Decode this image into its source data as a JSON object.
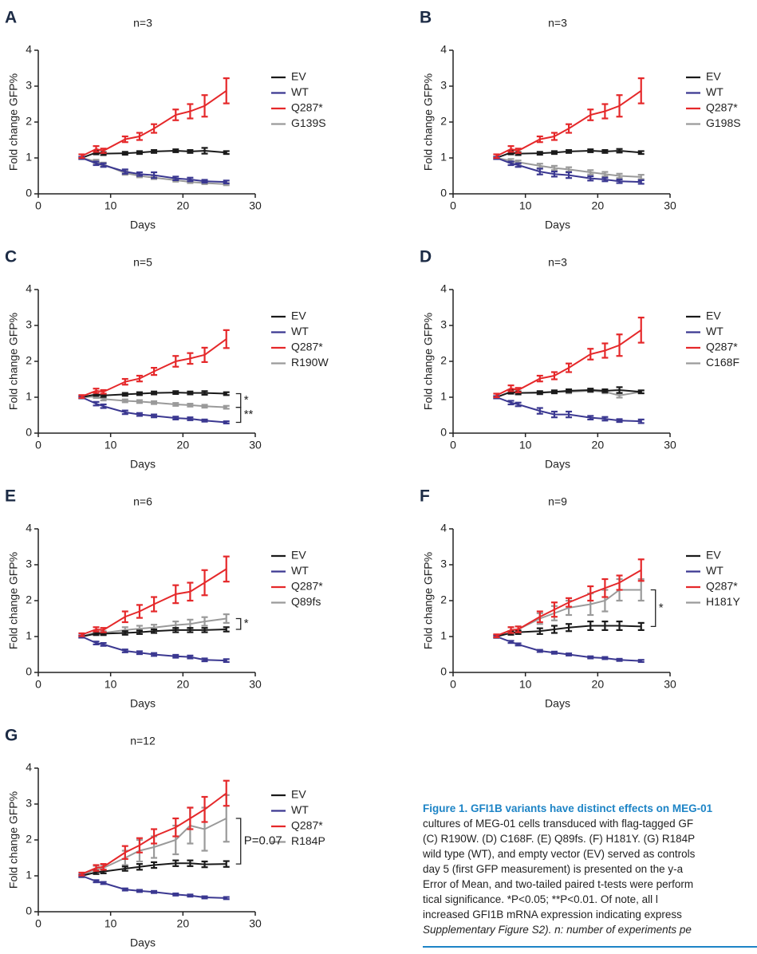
{
  "chart_data": [
    {
      "type": "line",
      "panel": "A",
      "title": "n=3",
      "xlabel": "Days",
      "ylabel": "Fold change GFP%",
      "x": [
        6,
        8,
        9,
        12,
        14,
        16,
        19,
        21,
        23,
        26
      ],
      "xlim": [
        0,
        30
      ],
      "ylim": [
        0,
        4
      ],
      "xticks": [
        0,
        10,
        20,
        30
      ],
      "yticks": [
        0,
        1,
        2,
        3,
        4
      ],
      "series": [
        {
          "name": "EV",
          "color": "#1a1a1a",
          "values": [
            1.0,
            1.15,
            1.12,
            1.13,
            1.15,
            1.18,
            1.2,
            1.18,
            1.2,
            1.15
          ],
          "errors": [
            0.03,
            0.05,
            0.04,
            0.04,
            0.04,
            0.04,
            0.04,
            0.04,
            0.08,
            0.04
          ]
        },
        {
          "name": "WT",
          "color": "#3b3891",
          "values": [
            1.0,
            0.85,
            0.8,
            0.62,
            0.55,
            0.52,
            0.43,
            0.4,
            0.35,
            0.33
          ],
          "errors": [
            0.03,
            0.05,
            0.05,
            0.06,
            0.05,
            0.08,
            0.05,
            0.05,
            0.04,
            0.04
          ]
        },
        {
          "name": "Q287*",
          "color": "#e5282a",
          "values": [
            1.05,
            1.25,
            1.2,
            1.52,
            1.6,
            1.82,
            2.2,
            2.3,
            2.45,
            2.87
          ],
          "errors": [
            0.05,
            0.08,
            0.06,
            0.08,
            0.1,
            0.12,
            0.15,
            0.2,
            0.3,
            0.35
          ]
        },
        {
          "name": "G139S",
          "color": "#9a9a9a",
          "values": [
            1.0,
            0.9,
            0.82,
            0.58,
            0.5,
            0.45,
            0.38,
            0.33,
            0.3,
            0.27
          ],
          "errors": [
            0.03,
            0.05,
            0.05,
            0.05,
            0.04,
            0.04,
            0.04,
            0.03,
            0.03,
            0.03
          ]
        }
      ],
      "annotations": []
    },
    {
      "type": "line",
      "panel": "B",
      "title": "n=3",
      "xlabel": "Days",
      "ylabel": "Fold change GFP%",
      "x": [
        6,
        8,
        9,
        12,
        14,
        16,
        19,
        21,
        23,
        26
      ],
      "xlim": [
        0,
        30
      ],
      "ylim": [
        0,
        4
      ],
      "xticks": [
        0,
        10,
        20,
        30
      ],
      "yticks": [
        0,
        1,
        2,
        3,
        4
      ],
      "series": [
        {
          "name": "EV",
          "color": "#1a1a1a",
          "values": [
            1.0,
            1.15,
            1.12,
            1.13,
            1.15,
            1.18,
            1.2,
            1.18,
            1.2,
            1.15
          ],
          "errors": [
            0.03,
            0.05,
            0.04,
            0.04,
            0.04,
            0.04,
            0.04,
            0.04,
            0.05,
            0.04
          ]
        },
        {
          "name": "WT",
          "color": "#3b3891",
          "values": [
            1.0,
            0.85,
            0.8,
            0.62,
            0.55,
            0.52,
            0.43,
            0.4,
            0.35,
            0.33
          ],
          "errors": [
            0.03,
            0.05,
            0.05,
            0.08,
            0.07,
            0.08,
            0.06,
            0.05,
            0.05,
            0.05
          ]
        },
        {
          "name": "Q287*",
          "color": "#e5282a",
          "values": [
            1.05,
            1.25,
            1.2,
            1.52,
            1.6,
            1.82,
            2.2,
            2.3,
            2.45,
            2.87
          ],
          "errors": [
            0.05,
            0.08,
            0.06,
            0.08,
            0.1,
            0.12,
            0.15,
            0.2,
            0.3,
            0.35
          ]
        },
        {
          "name": "G198S",
          "color": "#9a9a9a",
          "values": [
            1.0,
            0.92,
            0.88,
            0.78,
            0.72,
            0.68,
            0.6,
            0.55,
            0.5,
            0.47
          ],
          "errors": [
            0.03,
            0.05,
            0.05,
            0.06,
            0.06,
            0.06,
            0.06,
            0.06,
            0.06,
            0.06
          ]
        }
      ],
      "annotations": []
    },
    {
      "type": "line",
      "panel": "C",
      "title": "n=5",
      "xlabel": "Days",
      "ylabel": "Fold change GFP%",
      "x": [
        6,
        8,
        9,
        12,
        14,
        16,
        19,
        21,
        23,
        26
      ],
      "xlim": [
        0,
        30
      ],
      "ylim": [
        0,
        4
      ],
      "xticks": [
        0,
        10,
        20,
        30
      ],
      "yticks": [
        0,
        1,
        2,
        3,
        4
      ],
      "series": [
        {
          "name": "EV",
          "color": "#1a1a1a",
          "values": [
            1.0,
            1.08,
            1.05,
            1.08,
            1.1,
            1.12,
            1.13,
            1.12,
            1.12,
            1.1
          ],
          "errors": [
            0.03,
            0.04,
            0.04,
            0.04,
            0.04,
            0.04,
            0.04,
            0.04,
            0.05,
            0.04
          ]
        },
        {
          "name": "WT",
          "color": "#3b3891",
          "values": [
            1.0,
            0.82,
            0.75,
            0.58,
            0.52,
            0.48,
            0.42,
            0.4,
            0.35,
            0.3
          ],
          "errors": [
            0.03,
            0.05,
            0.05,
            0.05,
            0.04,
            0.04,
            0.04,
            0.04,
            0.03,
            0.03
          ]
        },
        {
          "name": "Q287*",
          "color": "#e5282a",
          "values": [
            1.02,
            1.18,
            1.15,
            1.43,
            1.52,
            1.72,
            2.0,
            2.08,
            2.18,
            2.62
          ],
          "errors": [
            0.04,
            0.06,
            0.05,
            0.08,
            0.08,
            0.1,
            0.15,
            0.15,
            0.2,
            0.25
          ]
        },
        {
          "name": "R190W",
          "color": "#9a9a9a",
          "values": [
            1.0,
            1.02,
            0.95,
            0.9,
            0.88,
            0.85,
            0.8,
            0.78,
            0.75,
            0.72
          ],
          "errors": [
            0.03,
            0.04,
            0.04,
            0.04,
            0.04,
            0.04,
            0.04,
            0.04,
            0.04,
            0.04
          ]
        }
      ],
      "annotations": [
        "*",
        "**"
      ]
    },
    {
      "type": "line",
      "panel": "D",
      "title": "n=3",
      "xlabel": "Days",
      "ylabel": "Fold change GFP%",
      "x": [
        6,
        8,
        9,
        12,
        14,
        16,
        19,
        21,
        23,
        26
      ],
      "xlim": [
        0,
        30
      ],
      "ylim": [
        0,
        4
      ],
      "xticks": [
        0,
        10,
        20,
        30
      ],
      "yticks": [
        0,
        1,
        2,
        3,
        4
      ],
      "series": [
        {
          "name": "EV",
          "color": "#1a1a1a",
          "values": [
            1.0,
            1.15,
            1.12,
            1.13,
            1.15,
            1.18,
            1.2,
            1.18,
            1.2,
            1.15
          ],
          "errors": [
            0.03,
            0.05,
            0.04,
            0.04,
            0.04,
            0.04,
            0.04,
            0.04,
            0.08,
            0.04
          ]
        },
        {
          "name": "WT",
          "color": "#3b3891",
          "values": [
            1.0,
            0.85,
            0.8,
            0.62,
            0.52,
            0.52,
            0.43,
            0.4,
            0.35,
            0.33
          ],
          "errors": [
            0.03,
            0.05,
            0.05,
            0.08,
            0.08,
            0.08,
            0.05,
            0.05,
            0.04,
            0.05
          ]
        },
        {
          "name": "Q287*",
          "color": "#e5282a",
          "values": [
            1.05,
            1.25,
            1.2,
            1.52,
            1.6,
            1.82,
            2.2,
            2.3,
            2.45,
            2.87
          ],
          "errors": [
            0.05,
            0.08,
            0.06,
            0.08,
            0.1,
            0.12,
            0.15,
            0.2,
            0.3,
            0.35
          ]
        },
        {
          "name": "C168F",
          "color": "#9a9a9a",
          "values": [
            1.0,
            1.15,
            1.12,
            1.12,
            1.15,
            1.15,
            1.18,
            1.15,
            1.05,
            1.15
          ],
          "errors": [
            0.03,
            0.05,
            0.04,
            0.04,
            0.04,
            0.04,
            0.04,
            0.04,
            0.06,
            0.04
          ]
        }
      ],
      "annotations": []
    },
    {
      "type": "line",
      "panel": "E",
      "title": "n=6",
      "xlabel": "Days",
      "ylabel": "Fold change GFP%",
      "x": [
        6,
        8,
        9,
        12,
        14,
        16,
        19,
        21,
        23,
        26
      ],
      "xlim": [
        0,
        30
      ],
      "ylim": [
        0,
        4
      ],
      "xticks": [
        0,
        10,
        20,
        30
      ],
      "yticks": [
        0,
        1,
        2,
        3,
        4
      ],
      "series": [
        {
          "name": "EV",
          "color": "#1a1a1a",
          "values": [
            1.0,
            1.08,
            1.08,
            1.1,
            1.12,
            1.15,
            1.18,
            1.18,
            1.18,
            1.2
          ],
          "errors": [
            0.03,
            0.04,
            0.04,
            0.05,
            0.05,
            0.05,
            0.06,
            0.06,
            0.06,
            0.06
          ]
        },
        {
          "name": "WT",
          "color": "#3b3891",
          "values": [
            1.0,
            0.82,
            0.78,
            0.6,
            0.55,
            0.5,
            0.45,
            0.43,
            0.35,
            0.33
          ],
          "errors": [
            0.03,
            0.04,
            0.04,
            0.04,
            0.04,
            0.04,
            0.04,
            0.04,
            0.04,
            0.04
          ]
        },
        {
          "name": "Q287*",
          "color": "#e5282a",
          "values": [
            1.05,
            1.2,
            1.18,
            1.55,
            1.7,
            1.9,
            2.18,
            2.25,
            2.5,
            2.88
          ],
          "errors": [
            0.04,
            0.06,
            0.06,
            0.15,
            0.18,
            0.2,
            0.25,
            0.25,
            0.35,
            0.35
          ]
        },
        {
          "name": "Q89fs",
          "color": "#9a9a9a",
          "values": [
            1.0,
            1.12,
            1.1,
            1.18,
            1.22,
            1.25,
            1.32,
            1.35,
            1.42,
            1.5
          ],
          "errors": [
            0.03,
            0.05,
            0.05,
            0.08,
            0.08,
            0.08,
            0.1,
            0.12,
            0.12,
            0.12
          ]
        }
      ],
      "annotations": [
        "*"
      ]
    },
    {
      "type": "line",
      "panel": "F",
      "title": "n=9",
      "xlabel": "Days",
      "ylabel": "Fold change GFP%",
      "x": [
        6,
        8,
        9,
        12,
        14,
        16,
        19,
        21,
        23,
        26
      ],
      "xlim": [
        0,
        30
      ],
      "ylim": [
        0,
        4
      ],
      "xticks": [
        0,
        10,
        20,
        30
      ],
      "yticks": [
        0,
        1,
        2,
        3,
        4
      ],
      "series": [
        {
          "name": "EV",
          "color": "#1a1a1a",
          "values": [
            1.0,
            1.1,
            1.12,
            1.15,
            1.2,
            1.25,
            1.3,
            1.3,
            1.3,
            1.28
          ],
          "errors": [
            0.03,
            0.05,
            0.05,
            0.08,
            0.1,
            0.1,
            0.12,
            0.12,
            0.12,
            0.1
          ]
        },
        {
          "name": "WT",
          "color": "#3b3891",
          "values": [
            1.0,
            0.85,
            0.78,
            0.6,
            0.55,
            0.5,
            0.42,
            0.4,
            0.35,
            0.32
          ],
          "errors": [
            0.03,
            0.03,
            0.03,
            0.03,
            0.03,
            0.03,
            0.03,
            0.03,
            0.03,
            0.03
          ]
        },
        {
          "name": "Q287*",
          "color": "#e5282a",
          "values": [
            1.02,
            1.18,
            1.2,
            1.55,
            1.75,
            1.95,
            2.2,
            2.35,
            2.5,
            2.85
          ],
          "errors": [
            0.04,
            0.08,
            0.08,
            0.15,
            0.2,
            0.12,
            0.2,
            0.25,
            0.2,
            0.3
          ]
        },
        {
          "name": "H181Y",
          "color": "#9a9a9a",
          "values": [
            1.0,
            1.18,
            1.2,
            1.5,
            1.65,
            1.8,
            1.9,
            2.0,
            2.3,
            2.3
          ],
          "errors": [
            0.04,
            0.08,
            0.08,
            0.15,
            0.2,
            0.2,
            0.3,
            0.3,
            0.3,
            0.3
          ]
        }
      ],
      "annotations": [
        "*"
      ]
    },
    {
      "type": "line",
      "panel": "G",
      "title": "n=12",
      "xlabel": "Days",
      "ylabel": "Fold change GFP%",
      "x": [
        6,
        8,
        9,
        12,
        14,
        16,
        19,
        21,
        23,
        26
      ],
      "xlim": [
        0,
        30
      ],
      "ylim": [
        0,
        4
      ],
      "xticks": [
        0,
        10,
        20,
        30
      ],
      "yticks": [
        0,
        1,
        2,
        3,
        4
      ],
      "series": [
        {
          "name": "EV",
          "color": "#1a1a1a",
          "values": [
            1.0,
            1.1,
            1.12,
            1.2,
            1.25,
            1.3,
            1.35,
            1.35,
            1.32,
            1.33
          ],
          "errors": [
            0.03,
            0.05,
            0.05,
            0.06,
            0.08,
            0.08,
            0.08,
            0.08,
            0.08,
            0.08
          ]
        },
        {
          "name": "WT",
          "color": "#3b3891",
          "values": [
            1.0,
            0.85,
            0.8,
            0.62,
            0.58,
            0.55,
            0.48,
            0.45,
            0.4,
            0.38
          ],
          "errors": [
            0.03,
            0.03,
            0.03,
            0.03,
            0.03,
            0.03,
            0.03,
            0.03,
            0.03,
            0.03
          ]
        },
        {
          "name": "Q287*",
          "color": "#e5282a",
          "values": [
            1.05,
            1.22,
            1.25,
            1.65,
            1.85,
            2.1,
            2.35,
            2.6,
            2.85,
            3.3
          ],
          "errors": [
            0.04,
            0.08,
            0.08,
            0.18,
            0.2,
            0.2,
            0.25,
            0.3,
            0.35,
            0.35
          ]
        },
        {
          "name": "R184P",
          "color": "#9a9a9a",
          "values": [
            1.0,
            1.2,
            1.22,
            1.5,
            1.7,
            1.8,
            2.0,
            2.4,
            2.3,
            2.6
          ],
          "errors": [
            0.04,
            0.08,
            0.08,
            0.2,
            0.3,
            0.3,
            0.4,
            0.5,
            0.6,
            0.65
          ]
        }
      ],
      "annotations": [
        "P=0.07"
      ]
    }
  ],
  "caption": {
    "title": "Figure 1. GFI1B variants have distinct effects on MEG-01",
    "lines": [
      "cultures of MEG-01 cells transduced with flag-tagged GF",
      "(C) R190W. (D) C168F. (E) Q89fs. (F) H181Y. (G) R184P",
      "wild type (WT), and empty vector (EV) served as controls",
      "day 5 (first GFP measurement) is presented on the y-a",
      "Error of Mean, and two-tailed paired t-tests were perform",
      "tical significance. *P<0.05; **P<0.01. Of note, all l",
      "increased GFI1B mRNA expression indicating express",
      "Supplementary Figure S2). n: number of experiments pe"
    ]
  }
}
